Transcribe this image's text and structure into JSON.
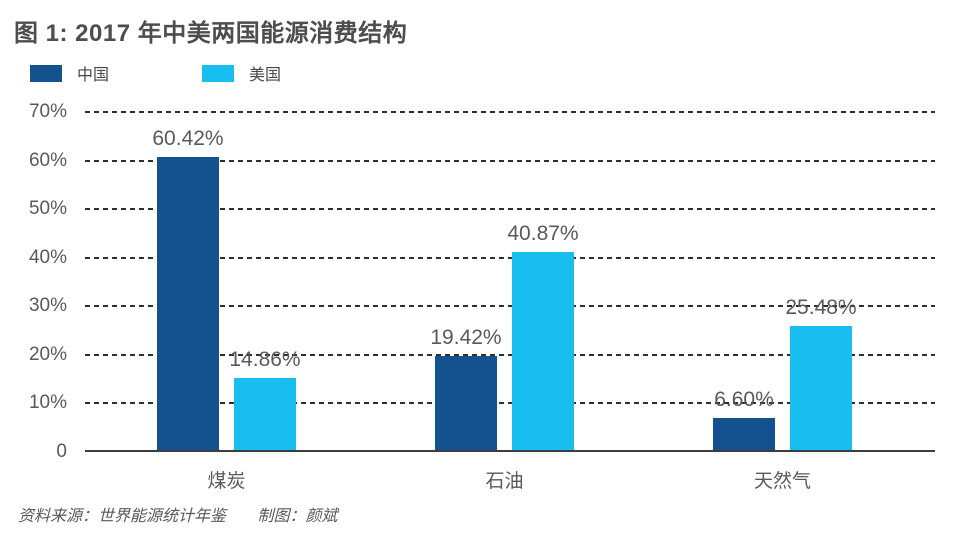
{
  "title": "图 1: 2017 年中美两国能源消费结构",
  "footer": {
    "source": "资料来源：世界能源统计年鉴",
    "credit": "制图：颜斌"
  },
  "chart_data": {
    "type": "bar",
    "title": "图 1: 2017 年中美两国能源消费结构",
    "categories": [
      "煤炭",
      "石油",
      "天然气"
    ],
    "series": [
      {
        "key": "china",
        "name": "中国",
        "color": "#14518f",
        "values": [
          60.42,
          19.42,
          6.6
        ],
        "labels": [
          "60.42%",
          "19.42%",
          "6.60%"
        ]
      },
      {
        "key": "usa",
        "name": "美国",
        "color": "#18bef0",
        "values": [
          14.86,
          40.87,
          25.48
        ],
        "labels": [
          "14.86%",
          "40.87%",
          "25.48%"
        ]
      }
    ],
    "ylim": [
      0,
      70
    ],
    "ytick_step": 10,
    "yticks": [
      "70%",
      "60%",
      "50%",
      "40%",
      "30%",
      "20%",
      "10%",
      "0"
    ],
    "grid": "dashed horizontal",
    "legend_position": "top-left"
  }
}
